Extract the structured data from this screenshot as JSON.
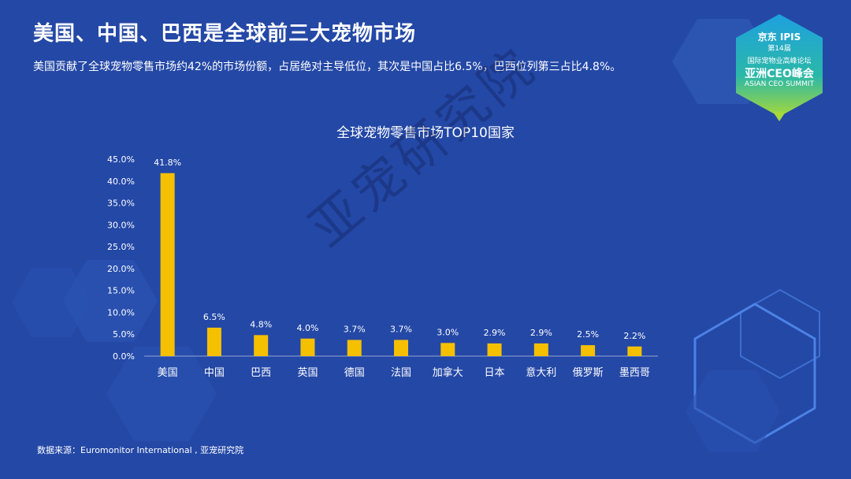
{
  "page": {
    "title": "美国、中国、巴西是全球前三大宠物市场",
    "subtitle": "美国贡献了全球宠物零售市场约42%的市场份额，占居绝对主导低位，其次是中国占比6.5%，巴西位列第三占比4.8%。",
    "source": "数据来源：Euromonitor International , 亚宠研究院",
    "watermark": "亚宠研究院"
  },
  "logo": {
    "line1": "京东 IPIS",
    "line2": "第14届",
    "line3": "国际宠物业高峰论坛",
    "line4": "亚洲CEO峰会",
    "line5": "ASIAN CEO SUMMIT"
  },
  "colors": {
    "background": "#2448a6",
    "bar": "#f5c000",
    "text": "#ffffff"
  },
  "chart_data": {
    "type": "bar",
    "title": "全球宠物零售市场TOP10国家",
    "categories": [
      "美国",
      "中国",
      "巴西",
      "英国",
      "德国",
      "法国",
      "加拿大",
      "日本",
      "意大利",
      "俄罗斯",
      "墨西哥"
    ],
    "values": [
      41.8,
      6.5,
      4.8,
      4.0,
      3.7,
      3.7,
      3.0,
      2.9,
      2.9,
      2.5,
      2.2
    ],
    "value_labels": [
      "41.8%",
      "6.5%",
      "4.8%",
      "4.0%",
      "3.7%",
      "3.7%",
      "3.0%",
      "2.9%",
      "2.9%",
      "2.5%",
      "2.2%"
    ],
    "yticks": [
      0,
      5,
      10,
      15,
      20,
      25,
      30,
      35,
      40,
      45
    ],
    "ytick_labels": [
      "0.0%",
      "5.0%",
      "10.0%",
      "15.0%",
      "20.0%",
      "25.0%",
      "30.0%",
      "35.0%",
      "40.0%",
      "45.0%"
    ],
    "ylim": [
      0,
      45
    ],
    "xlabel": "",
    "ylabel": "",
    "grid": false
  }
}
